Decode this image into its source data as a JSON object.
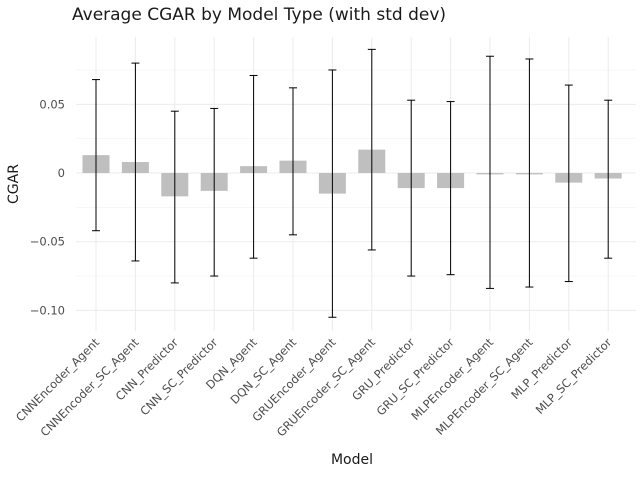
{
  "chart_data": {
    "type": "bar",
    "title": "Average CGAR by Model Type (with std dev)",
    "xlabel": "Model",
    "ylabel": "CGAR",
    "categories": [
      "CNNEncoder_Agent",
      "CNNEncoder_SC_Agent",
      "CNN_Predictor",
      "CNN_SC_Predictor",
      "DQN_Agent",
      "DQN_SC_Agent",
      "GRUEncoder_Agent",
      "GRUEncoder_SC_Agent",
      "GRU_Predictor",
      "GRU_SC_Predictor",
      "MLPEncoder_Agent",
      "MLPEncoder_SC_Agent",
      "MLP_Predictor",
      "MLP_SC_Predictor"
    ],
    "values": [
      0.013,
      0.008,
      -0.017,
      -0.013,
      0.005,
      0.009,
      -0.015,
      0.017,
      -0.011,
      -0.011,
      -0.001,
      -0.001,
      -0.007,
      -0.004
    ],
    "err_upper": [
      0.068,
      0.08,
      0.045,
      0.047,
      0.071,
      0.062,
      0.075,
      0.09,
      0.053,
      0.052,
      0.085,
      0.083,
      0.064,
      0.053
    ],
    "err_lower": [
      -0.042,
      -0.064,
      -0.08,
      -0.075,
      -0.062,
      -0.045,
      -0.105,
      -0.056,
      -0.075,
      -0.074,
      -0.084,
      -0.083,
      -0.079,
      -0.062
    ],
    "yticks": [
      -0.1,
      -0.05,
      0,
      0.05
    ],
    "ytick_labels": [
      "−0.10",
      "−0.05",
      "0",
      "0.05"
    ],
    "ylim": [
      -0.115,
      0.099
    ],
    "grid": true,
    "bar_color": "#bfbfbf",
    "errorbar_color": "#000000"
  }
}
